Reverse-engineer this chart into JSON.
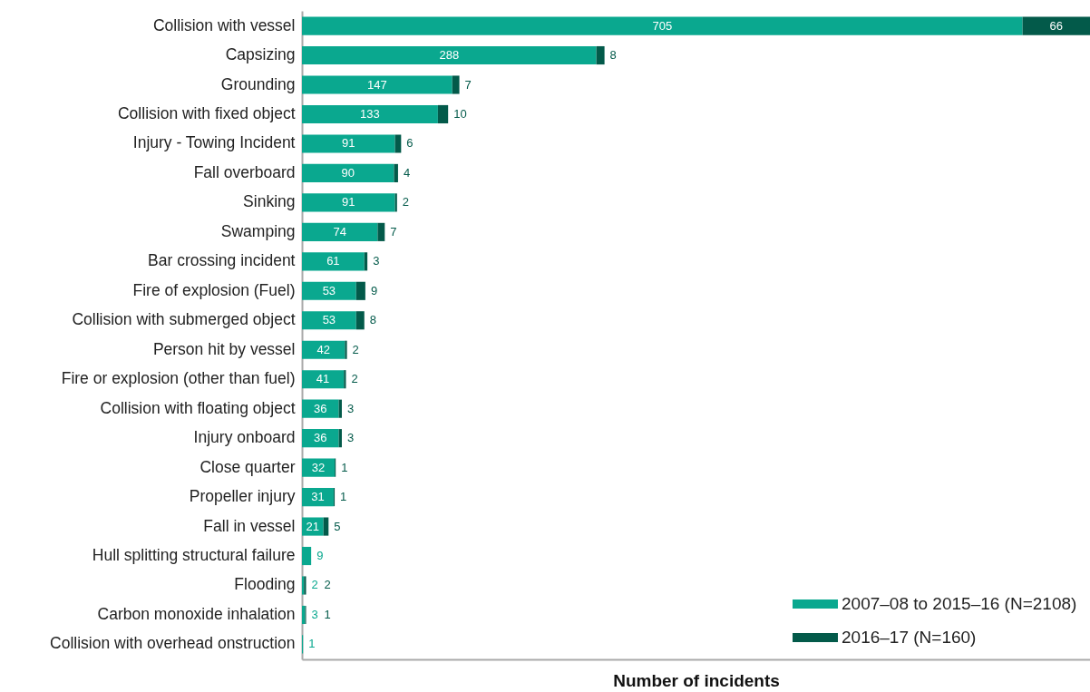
{
  "chart_data": {
    "type": "bar",
    "orientation": "horizontal",
    "stacked": true,
    "data_labels": true,
    "tick_labels": "y",
    "xlabel": "Number of incidents",
    "legend": "bottom right",
    "grid": false,
    "categories": [
      "Collision with vessel",
      "Capsizing",
      "Grounding",
      "Collision with fixed object",
      "Injury - Towing Incident",
      "Fall overboard",
      "Sinking",
      "Swamping",
      "Bar crossing incident",
      "Fire of explosion (Fuel)",
      "Collision with submerged object",
      "Person hit by vessel",
      "Fire or explosion (other than fuel)",
      "Collision with floating object",
      "Injury onboard",
      "Close quarter",
      "Propeller injury",
      "Fall in vessel",
      "Hull splitting structural failure",
      "Flooding",
      "Carbon monoxide inhalation",
      "Collision with overhead onstruction"
    ],
    "series": [
      {
        "name": "2007–08 to 2015–16 (N=2108)",
        "color": "#0aa88f",
        "values": [
          705,
          288,
          147,
          133,
          91,
          90,
          91,
          74,
          61,
          53,
          53,
          42,
          41,
          36,
          36,
          32,
          31,
          21,
          9,
          2,
          3,
          1
        ]
      },
      {
        "name": "2016–17 (N=160)",
        "color": "#035a4a",
        "values": [
          66,
          8,
          7,
          10,
          6,
          4,
          2,
          7,
          3,
          9,
          8,
          2,
          2,
          3,
          3,
          1,
          1,
          5,
          null,
          2,
          1,
          null
        ]
      }
    ]
  }
}
